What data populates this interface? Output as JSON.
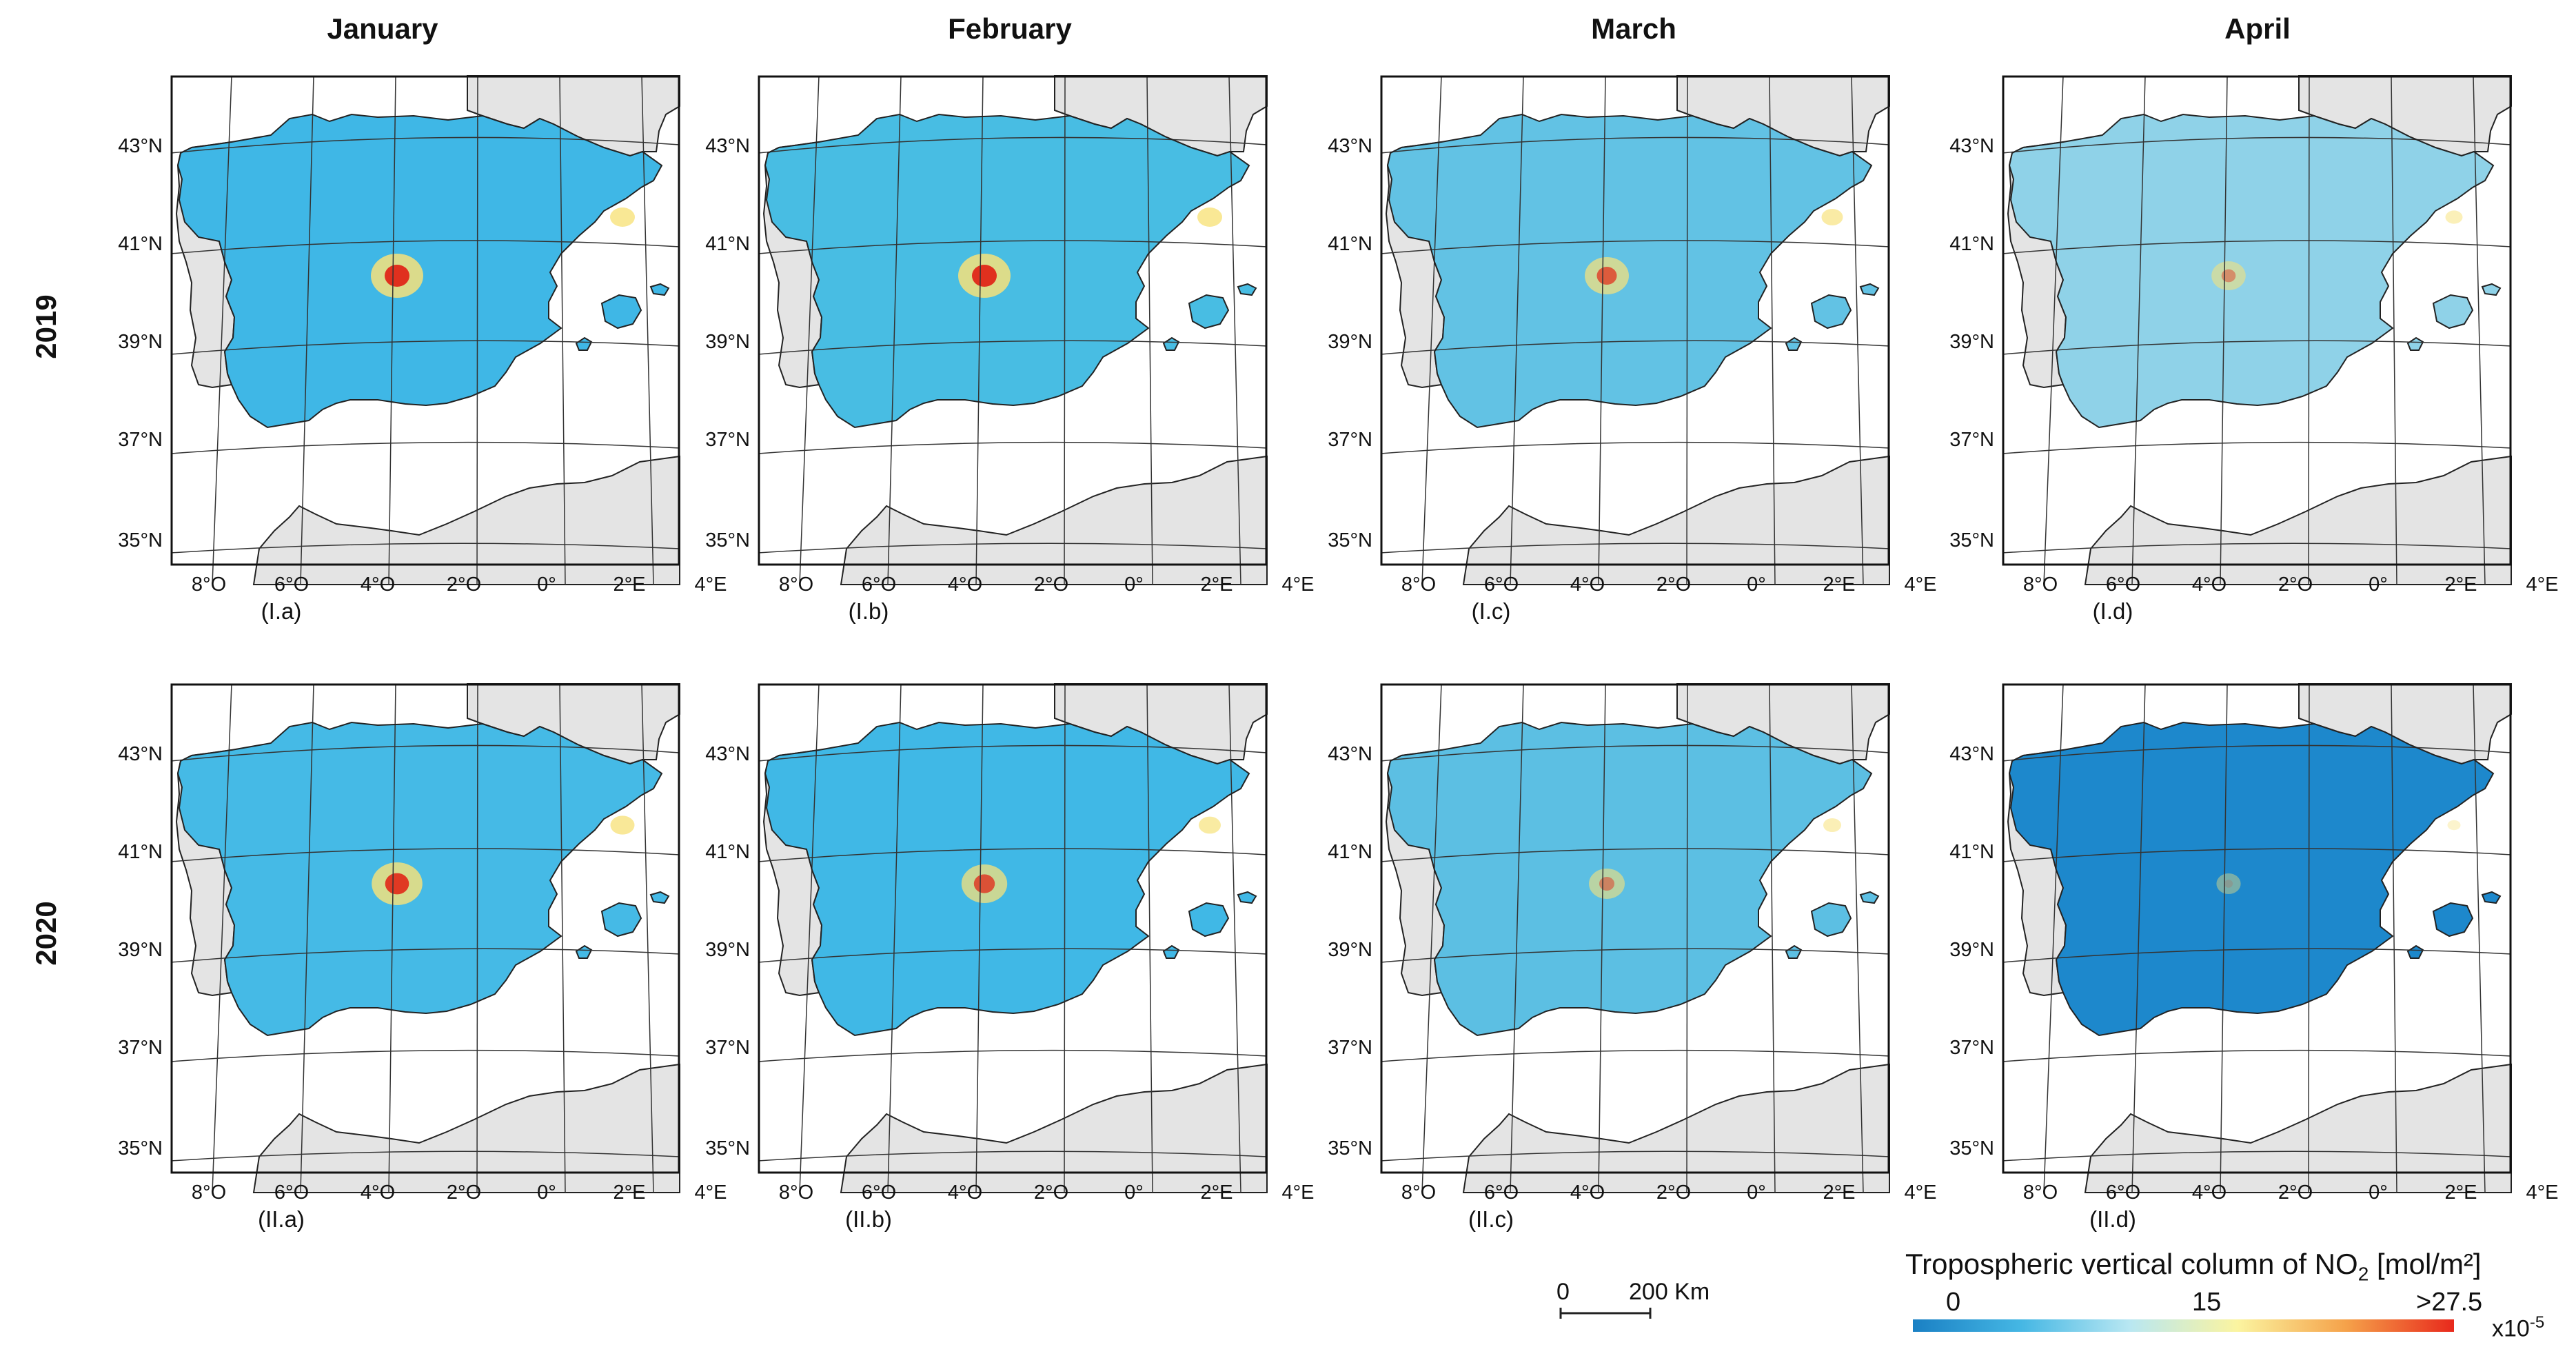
{
  "months": [
    "January",
    "February",
    "March",
    "April"
  ],
  "years": [
    "2019",
    "2020"
  ],
  "lat_labels": [
    "43°N",
    "41°N",
    "39°N",
    "37°N",
    "35°N"
  ],
  "lon_labels": [
    "8°O",
    "6°O",
    "4°O",
    "2°O",
    "0°",
    "2°E",
    "4°E"
  ],
  "captions": [
    [
      "(I.a)",
      "(I.b)",
      "(I.c)",
      "(I.d)"
    ],
    [
      "(II.a)",
      "(II.b)",
      "(II.c)",
      "(II.d)"
    ]
  ],
  "fills": [
    [
      "#3fb7e6",
      "#48bde3",
      "#62c2e4",
      "#8fd2e8"
    ],
    [
      "#45bae6",
      "#40b8e6",
      "#5cbfe3",
      "#1d88cc"
    ]
  ],
  "hotspot_levels": [
    [
      1.0,
      1.0,
      0.75,
      0.45
    ],
    [
      0.95,
      0.8,
      0.5,
      0.15
    ]
  ],
  "colors": {
    "land_other": "#e4e4e4",
    "grid": "#333333",
    "hot": "#e0301e",
    "warm": "#f7e27a",
    "ramp": [
      "#1a80c4",
      "#45b7e4",
      "#b8e7f2",
      "#fbf4a0",
      "#f5a24a",
      "#e8291c"
    ]
  },
  "scalebar": {
    "zero": "0",
    "distance": "200 Km"
  },
  "legend": {
    "title_prefix": "Tropospheric vertical column of NO",
    "title_sub": "2",
    "title_suffix": " [mol/m²]",
    "ticks": [
      "0",
      "15",
      ">27.5"
    ],
    "multiplier": "x10",
    "exponent": "-5"
  }
}
